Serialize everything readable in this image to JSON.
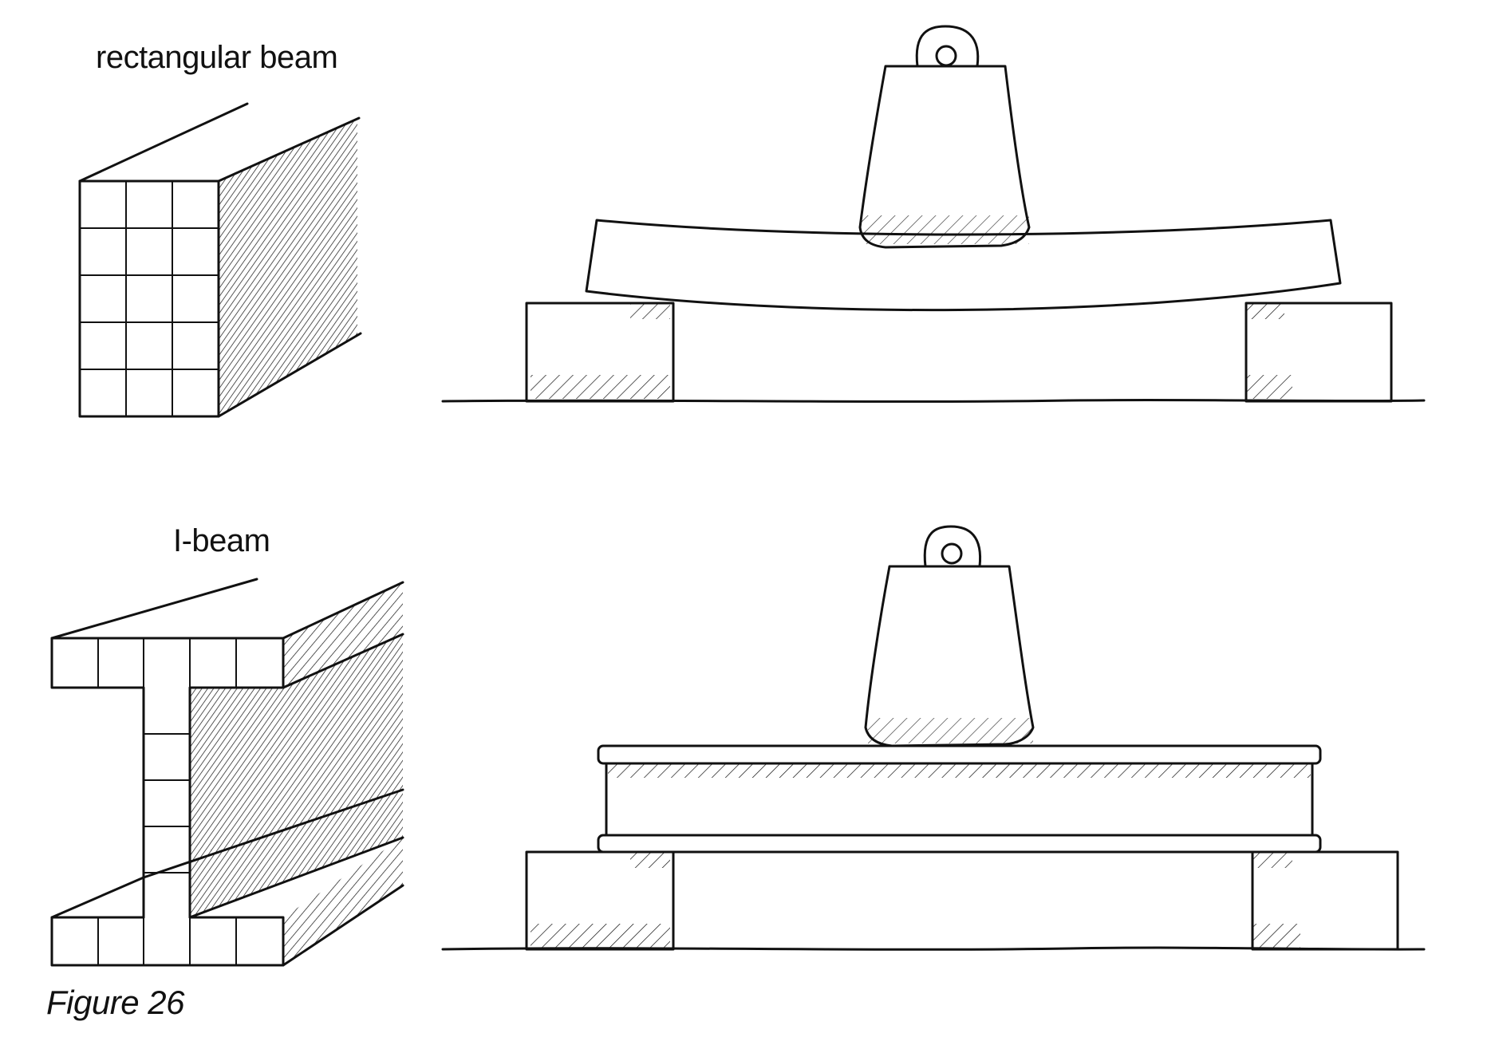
{
  "labels": {
    "rectangular_beam": "rectangular beam",
    "i_beam": "I-beam",
    "caption": "Figure 26"
  },
  "colors": {
    "ink": "#111111",
    "paper": "#ffffff"
  }
}
